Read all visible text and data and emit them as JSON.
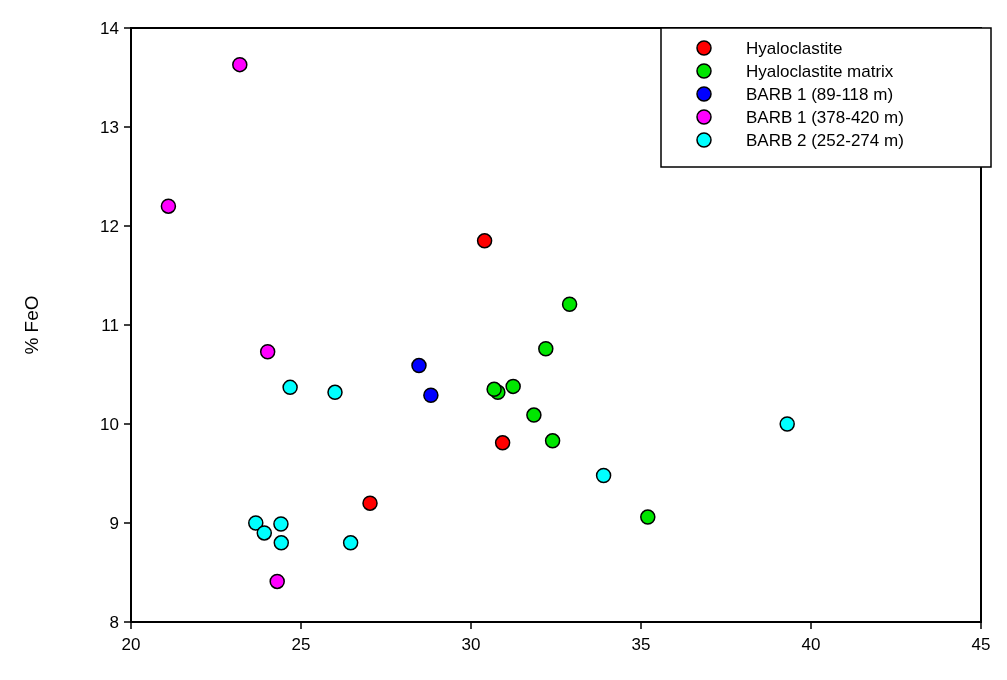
{
  "chart_data": {
    "type": "scatter",
    "ylabel": "% FeO",
    "xlim": [
      20,
      45
    ],
    "xticks": [
      20,
      25,
      30,
      35,
      40,
      45
    ],
    "ylim": [
      8,
      14
    ],
    "yticks": [
      8,
      9,
      10,
      11,
      12,
      13,
      14
    ],
    "legend": "top right",
    "marker": "circle",
    "grid": false,
    "series": [
      {
        "name": "Hyaloclastite",
        "color": "#ff0000",
        "x": [
          30.4,
          27.03,
          30.93
        ],
        "values": [
          11.85,
          9.2,
          9.81
        ]
      },
      {
        "name": "Hyaloclastite matrix",
        "color": "#00e600",
        "x": [
          32.9,
          32.2,
          30.79,
          30.68,
          31.24,
          31.85,
          32.4,
          35.2
        ],
        "values": [
          11.21,
          10.76,
          10.32,
          10.35,
          10.38,
          10.09,
          9.83,
          9.06
        ]
      },
      {
        "name": "BARB 1 (89-118 m)",
        "color": "#0000ff",
        "x": [
          28.47,
          28.82
        ],
        "values": [
          10.59,
          10.29
        ]
      },
      {
        "name": "BARB 1 (378-420 m)",
        "color": "#ff00ff",
        "x": [
          21.1,
          23.2,
          24.02,
          24.3
        ],
        "values": [
          12.2,
          13.63,
          10.73,
          8.41
        ]
      },
      {
        "name": "BARB 2 (252-274 m)",
        "color": "#00ffff",
        "x": [
          24.68,
          26.0,
          23.67,
          23.92,
          24.41,
          24.42,
          26.46,
          39.3,
          33.9
        ],
        "values": [
          10.37,
          10.32,
          9.0,
          8.9,
          8.99,
          8.8,
          8.8,
          10.0,
          9.48
        ]
      }
    ]
  }
}
